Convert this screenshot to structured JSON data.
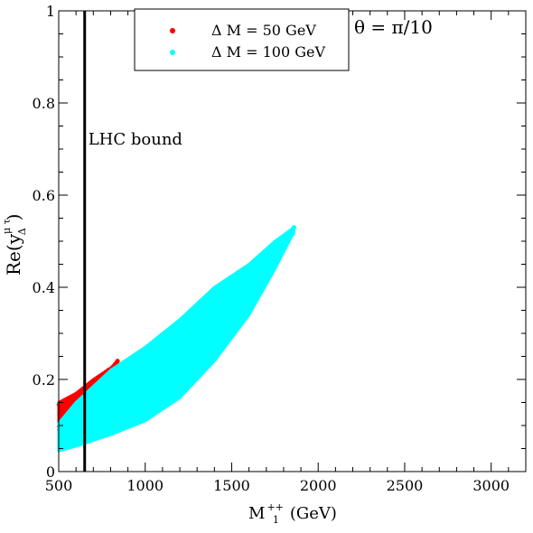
{
  "chart_data": {
    "type": "scatter",
    "xlabel": "M",
    "xlabel_sub": "1",
    "xlabel_sup": "++",
    "xlabel_unit": "(GeV)",
    "ylabel": "Re(y",
    "ylabel_sub": "Δ",
    "ylabel_sup": "μ τ",
    "ylabel_close": ")",
    "xlim": [
      500,
      3200
    ],
    "ylim": [
      0,
      1
    ],
    "x_ticks": [
      "500",
      "1000",
      "1500",
      "2000",
      "2500",
      "3000"
    ],
    "y_ticks": [
      "0",
      "0.2",
      "0.4",
      "0.6",
      "0.8",
      "1"
    ],
    "grid": false,
    "legend_position": "top-center",
    "annotation_theta": "θ = π/10",
    "vline": {
      "x": 650,
      "label": "LHC bound"
    },
    "series": [
      {
        "name": "Δ M = 50 GeV",
        "color": "#ff0000",
        "band": [
          {
            "x": 500,
            "ymin": 0.09,
            "ymax": 0.15
          },
          {
            "x": 600,
            "ymin": 0.11,
            "ymax": 0.17
          },
          {
            "x": 700,
            "ymin": 0.14,
            "ymax": 0.2
          },
          {
            "x": 800,
            "ymin": 0.18,
            "ymax": 0.225
          },
          {
            "x": 840,
            "ymin": 0.21,
            "ymax": 0.24
          }
        ]
      },
      {
        "name": "Δ M = 100 GeV",
        "color": "#00ffff",
        "band": [
          {
            "x": 500,
            "ymin": 0.045,
            "ymax": 0.105
          },
          {
            "x": 600,
            "ymin": 0.055,
            "ymax": 0.15
          },
          {
            "x": 800,
            "ymin": 0.08,
            "ymax": 0.22
          },
          {
            "x": 1000,
            "ymin": 0.11,
            "ymax": 0.27
          },
          {
            "x": 1200,
            "ymin": 0.16,
            "ymax": 0.33
          },
          {
            "x": 1400,
            "ymin": 0.24,
            "ymax": 0.4
          },
          {
            "x": 1600,
            "ymin": 0.34,
            "ymax": 0.45
          },
          {
            "x": 1750,
            "ymin": 0.44,
            "ymax": 0.5
          },
          {
            "x": 1860,
            "ymin": 0.52,
            "ymax": 0.53
          }
        ]
      }
    ]
  }
}
